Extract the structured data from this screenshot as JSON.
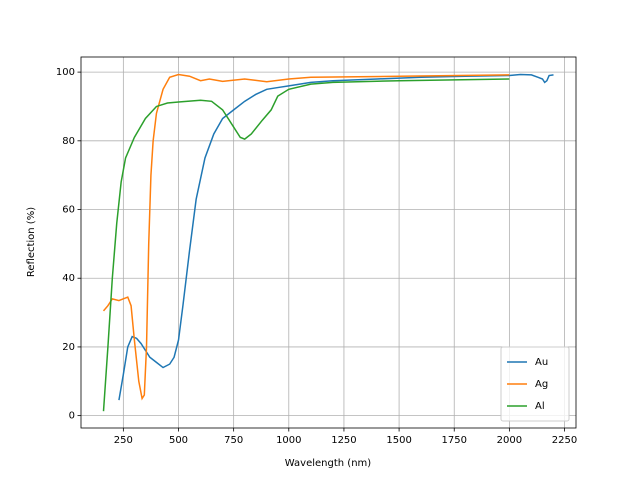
{
  "chart_data": {
    "type": "line",
    "xlabel": "Wavelength (nm)",
    "ylabel": "Reflection (%)",
    "xlim": [
      58,
      2302
    ],
    "ylim": [
      -3.6,
      104.4
    ],
    "xticks": [
      250,
      500,
      750,
      1000,
      1250,
      1500,
      1750,
      2000,
      2250
    ],
    "yticks": [
      0,
      20,
      40,
      60,
      80,
      100
    ],
    "grid": true,
    "legend": "lower right",
    "series": [
      {
        "name": "Au",
        "color": "#1f77b4",
        "x": [
          230,
          250,
          270,
          290,
          310,
          330,
          350,
          370,
          400,
          430,
          460,
          480,
          500,
          520,
          550,
          580,
          620,
          660,
          700,
          750,
          800,
          850,
          900,
          950,
          1000,
          1100,
          1200,
          1400,
          1600,
          1800,
          2000,
          2050,
          2100,
          2130,
          2150,
          2160,
          2170,
          2180,
          2200
        ],
        "values": [
          4.5,
          12,
          20,
          23,
          22.5,
          21,
          19,
          17,
          15.5,
          14,
          15,
          17,
          22,
          32,
          48,
          63,
          75,
          82,
          86.5,
          89,
          91.5,
          93.5,
          95,
          95.5,
          96,
          97,
          97.5,
          98,
          98.5,
          98.8,
          99,
          99.3,
          99.2,
          98.5,
          98,
          97,
          97.5,
          99,
          99.2
        ]
      },
      {
        "name": "Ag",
        "color": "#ff7f0e",
        "x": [
          160,
          180,
          200,
          230,
          250,
          270,
          285,
          300,
          320,
          335,
          345,
          355,
          365,
          375,
          385,
          400,
          430,
          460,
          500,
          550,
          600,
          640,
          700,
          800,
          900,
          1000,
          1100,
          1500,
          2000
        ],
        "values": [
          30.5,
          32,
          34,
          33.5,
          34,
          34.5,
          32,
          22,
          10,
          5,
          6,
          20,
          50,
          70,
          80,
          88,
          95,
          98.5,
          99.3,
          98.8,
          97.5,
          98,
          97.3,
          98,
          97.2,
          98,
          98.5,
          98.8,
          99.2
        ]
      },
      {
        "name": "Al",
        "color": "#2ca02c",
        "x": [
          160,
          180,
          200,
          220,
          240,
          260,
          300,
          350,
          400,
          450,
          500,
          600,
          650,
          700,
          750,
          780,
          800,
          830,
          880,
          920,
          950,
          1000,
          1100,
          1200,
          1500,
          2000
        ],
        "values": [
          1.3,
          20,
          40,
          56,
          68,
          75,
          81,
          86.5,
          90,
          91,
          91.3,
          91.8,
          91.5,
          89,
          84,
          81,
          80.5,
          82,
          86,
          89,
          93,
          95,
          96.5,
          97,
          97.5,
          98
        ]
      }
    ]
  }
}
